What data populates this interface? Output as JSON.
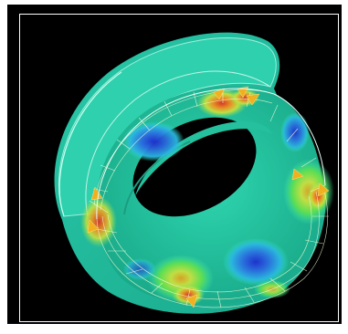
{
  "viewer": {
    "background_color": "#000000",
    "border_color": "#ffffff",
    "model": "ring",
    "contour_palette": [
      "#1e3ccf",
      "#2aa6e0",
      "#33e0c0",
      "#3de8b0",
      "#7ee05a",
      "#d8e040",
      "#f0a020",
      "#e04020"
    ]
  }
}
